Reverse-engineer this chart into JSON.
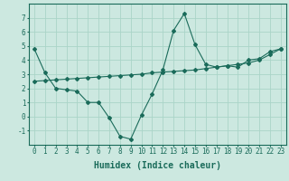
{
  "xlabel": "Humidex (Indice chaleur)",
  "background_color": "#cce8e0",
  "grid_color": "#aad4c8",
  "line_color": "#1a6b5a",
  "x_values": [
    0,
    1,
    2,
    3,
    4,
    5,
    6,
    7,
    8,
    9,
    10,
    11,
    12,
    13,
    14,
    15,
    16,
    17,
    18,
    19,
    20,
    21,
    22,
    23
  ],
  "line1_y": [
    4.8,
    3.1,
    2.0,
    1.9,
    1.8,
    1.0,
    1.0,
    -0.1,
    -1.4,
    -1.6,
    0.1,
    1.6,
    3.3,
    6.1,
    7.3,
    5.1,
    3.7,
    3.5,
    3.6,
    3.5,
    4.0,
    4.1,
    4.6,
    4.8
  ],
  "trend_y": [
    2.5,
    2.55,
    2.6,
    2.65,
    2.7,
    2.75,
    2.8,
    2.85,
    2.9,
    2.95,
    3.0,
    3.1,
    3.15,
    3.2,
    3.25,
    3.3,
    3.4,
    3.5,
    3.6,
    3.7,
    3.8,
    4.0,
    4.4,
    4.8
  ],
  "ylim": [
    -2,
    8
  ],
  "xlim": [
    -0.5,
    23.5
  ],
  "yticks": [
    -1,
    0,
    1,
    2,
    3,
    4,
    5,
    6,
    7
  ],
  "xticks": [
    0,
    1,
    2,
    3,
    4,
    5,
    6,
    7,
    8,
    9,
    10,
    11,
    12,
    13,
    14,
    15,
    16,
    17,
    18,
    19,
    20,
    21,
    22,
    23
  ],
  "tick_fontsize": 5.5,
  "xlabel_fontsize": 7
}
